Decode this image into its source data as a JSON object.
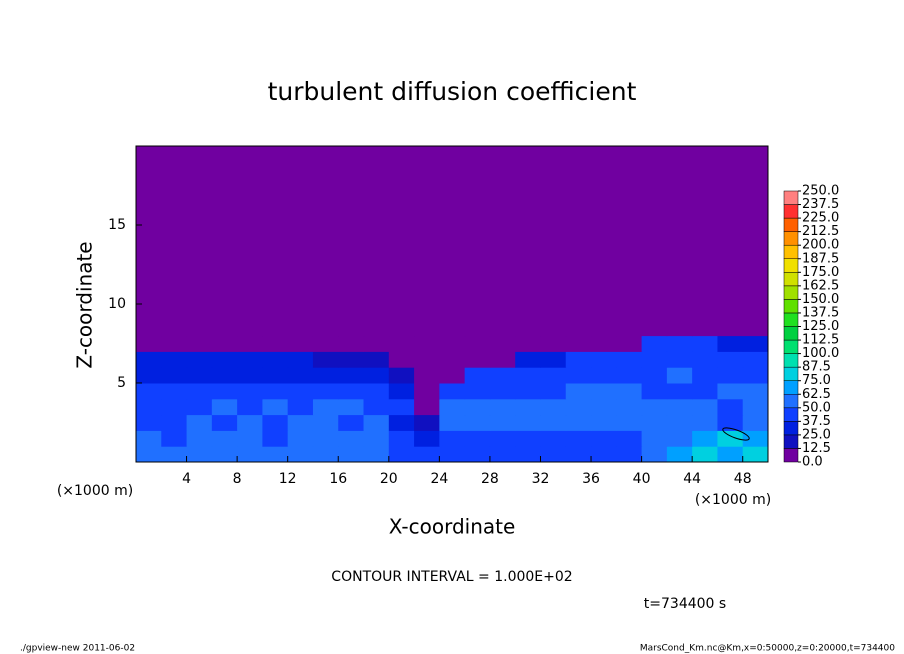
{
  "chart_data": {
    "type": "heatmap",
    "title": "turbulent diffusion coefficient",
    "x_label": "X-coordinate",
    "y_label": "Z-coordinate",
    "x_units": "(×1000 m)",
    "y_units": "(×1000 m)",
    "contour_note": "CONTOUR INTERVAL = 1.000E+02",
    "time_label": "t=734400 s",
    "footer_left": "./gpview-new   2011-06-02",
    "footer_right": "MarsCond_Km.nc@Km,x=0:50000,z=0:20000,t=734400",
    "xlim": [
      0,
      50
    ],
    "ylim": [
      0,
      20
    ],
    "xticks": [
      4,
      8,
      12,
      16,
      20,
      24,
      28,
      32,
      36,
      40,
      44,
      48
    ],
    "yticks": [
      5,
      10,
      15
    ],
    "x_bins": [
      0,
      2,
      4,
      6,
      8,
      10,
      12,
      14,
      16,
      18,
      20,
      22,
      24,
      26,
      28,
      30,
      32,
      34,
      36,
      38,
      40,
      42,
      44,
      46,
      48,
      50
    ],
    "y_bins": [
      0,
      1,
      2,
      3,
      4,
      5,
      6,
      7,
      8,
      20
    ],
    "z": [
      [
        55,
        50,
        55,
        60,
        55,
        50,
        60,
        55,
        50,
        60,
        45,
        40,
        45,
        45,
        45,
        45,
        45,
        45,
        45,
        45,
        55,
        65,
        75,
        70,
        80
      ],
      [
        50,
        45,
        50,
        55,
        50,
        45,
        55,
        50,
        55,
        50,
        40,
        30,
        45,
        45,
        45,
        45,
        45,
        45,
        45,
        45,
        55,
        60,
        70,
        80,
        65
      ],
      [
        45,
        45,
        50,
        45,
        55,
        45,
        50,
        60,
        45,
        55,
        35,
        15,
        50,
        50,
        50,
        50,
        50,
        50,
        50,
        50,
        55,
        60,
        50,
        45,
        60
      ],
      [
        45,
        40,
        45,
        50,
        45,
        50,
        45,
        55,
        50,
        45,
        40,
        10,
        50,
        50,
        50,
        50,
        50,
        50,
        50,
        50,
        50,
        50,
        50,
        45,
        55
      ],
      [
        40,
        40,
        45,
        40,
        40,
        45,
        40,
        45,
        40,
        40,
        30,
        5,
        45,
        45,
        45,
        45,
        45,
        50,
        50,
        50,
        45,
        45,
        45,
        50,
        50
      ],
      [
        35,
        35,
        35,
        35,
        35,
        35,
        35,
        35,
        35,
        35,
        20,
        5,
        10,
        40,
        40,
        40,
        40,
        45,
        45,
        45,
        45,
        50,
        45,
        45,
        45
      ],
      [
        30,
        30,
        30,
        30,
        30,
        30,
        30,
        20,
        20,
        20,
        5,
        5,
        5,
        5,
        5,
        30,
        30,
        40,
        40,
        40,
        45,
        45,
        45,
        45,
        45
      ],
      [
        5,
        5,
        5,
        5,
        5,
        5,
        5,
        5,
        5,
        5,
        5,
        5,
        5,
        5,
        5,
        5,
        5,
        5,
        5,
        5,
        40,
        40,
        40,
        35,
        35
      ],
      [
        0,
        0,
        0,
        0,
        0,
        0,
        0,
        0,
        0,
        0,
        0,
        0,
        0,
        0,
        0,
        0,
        0,
        0,
        0,
        0,
        0,
        0,
        0,
        0,
        0
      ]
    ],
    "levels": [
      {
        "value": 0,
        "label": "0.0"
      },
      12.5,
      {
        "value": 25,
        "label": "25.0"
      },
      37.5,
      {
        "value": 50,
        "label": "50.0"
      },
      62.5,
      {
        "value": 75,
        "label": "75.0"
      },
      87.5,
      {
        "value": 100,
        "label": "100.0"
      },
      112.5,
      {
        "value": 125,
        "label": "125.0"
      },
      137.5,
      {
        "value": 150,
        "label": "150.0"
      },
      162.5,
      {
        "value": 175,
        "label": "175.0"
      },
      187.5,
      {
        "value": 200,
        "label": "200.0"
      },
      212.5,
      {
        "value": 225,
        "label": "225.0"
      },
      237.5,
      {
        "value": 250,
        "label": "250.0"
      }
    ],
    "colors": [
      "#7000a0",
      "#1010c0",
      "#0020e0",
      "#1040ff",
      "#2070ff",
      "#00a0ff",
      "#00d0e0",
      "#00e0b0",
      "#00e070",
      "#00d040",
      "#20e020",
      "#60e000",
      "#a0e000",
      "#d0e000",
      "#f0e000",
      "#ffc000",
      "#ff9000",
      "#ff6000",
      "#ff3030",
      "#ff8080"
    ]
  }
}
